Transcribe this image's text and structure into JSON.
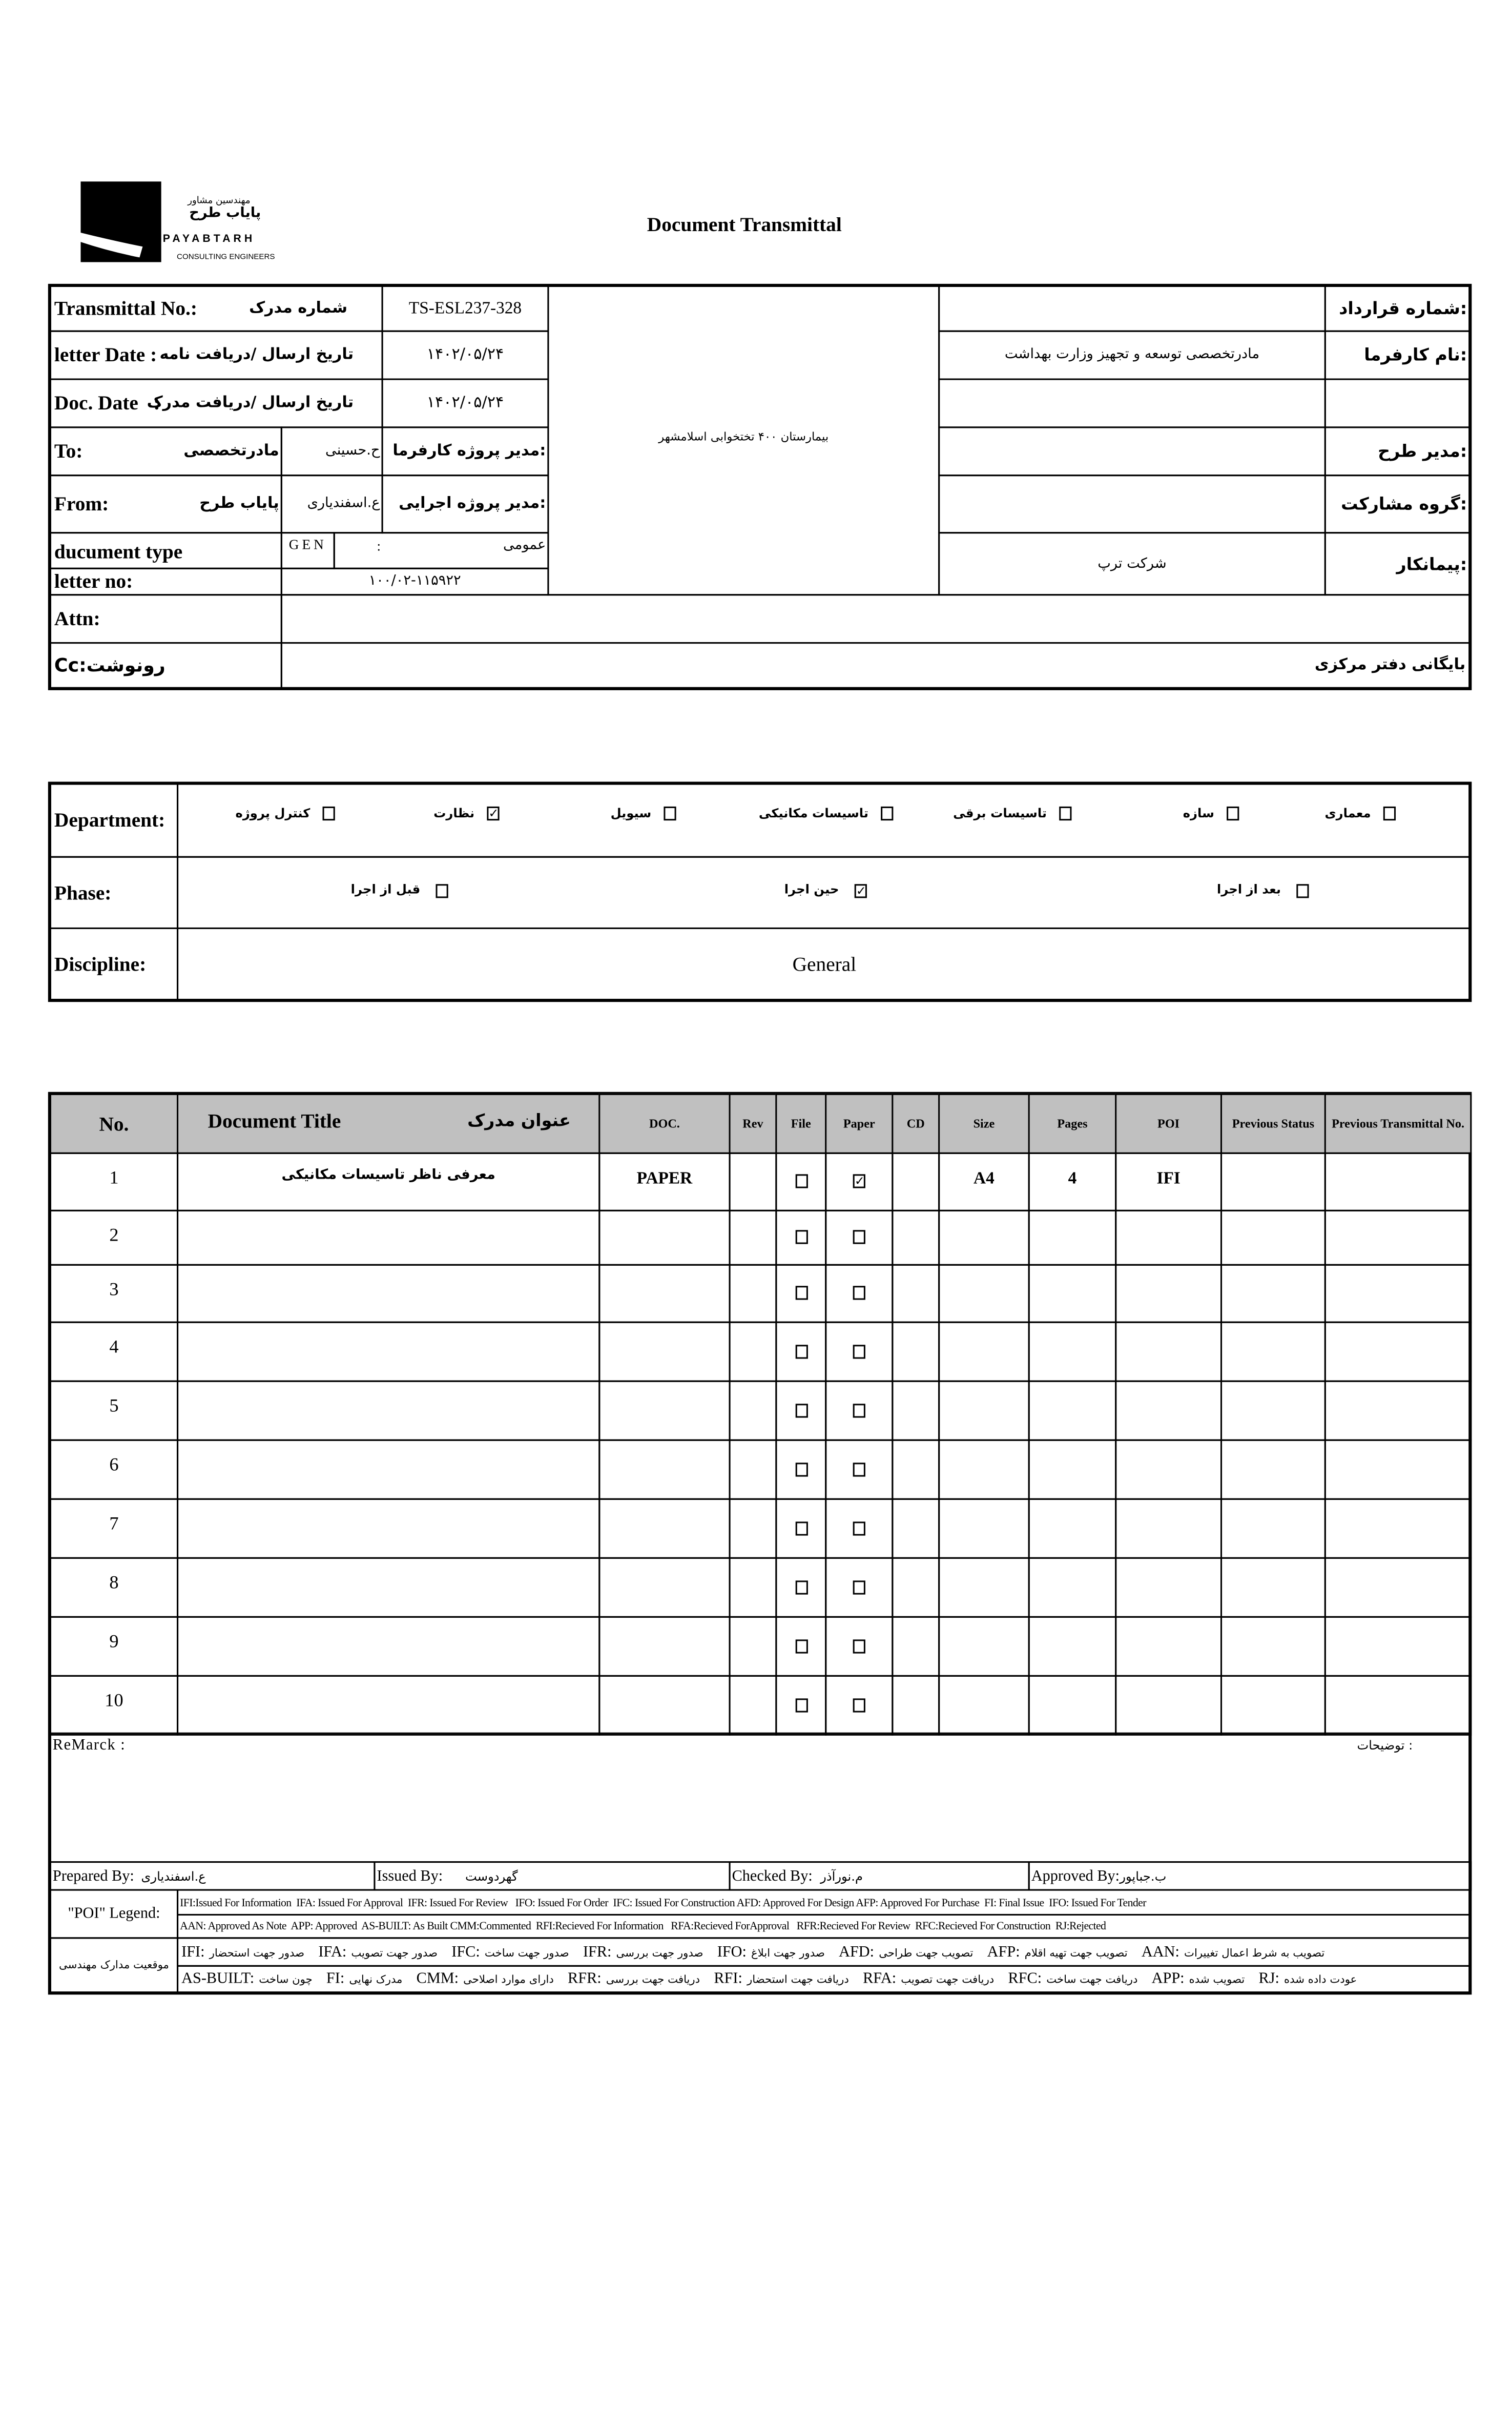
{
  "logo": {
    "fa_line1": "مهندسین مشاور",
    "fa_name": "پایاب طرح",
    "en_name": "PAYABTARH",
    "subtitle": "CONSULTING ENGINEERS"
  },
  "title": "Document Transmittal",
  "header": {
    "transmittal_no": {
      "label": "Transmittal No.:",
      "label_fa": "شماره مدرک",
      "value": "TS-ESL237-328"
    },
    "letter_date": {
      "label": "letter Date  :",
      "label_fa": "تاریخ ارسال /دریافت نامه",
      "value": "۱۴۰۲/۰۵/۲۴"
    },
    "doc_date": {
      "label": "Doc. Date   :",
      "label_fa": "تاریخ ارسال /دریافت مدرک",
      "value": "۱۴۰۲/۰۵/۲۴"
    },
    "to": {
      "label": "To:",
      "org": "مادرتخصصی",
      "person": "ح.حسینی",
      "role": "مدیر پروژه کارفرما:"
    },
    "from": {
      "label": "From:",
      "org": "پایاب طرح",
      "person": "ع.اسفندیاری",
      "role": "مدیر پروژه اجرایی:"
    },
    "document_type": {
      "label": "ducument type",
      "code": "GEN",
      "sep": ":",
      "value": "عمومی"
    },
    "letter_no": {
      "label": "letter no:",
      "value": "۱۰۰/۰۲-۱۱۵۹۲۲"
    },
    "attn": {
      "label": "Attn:",
      "value": ""
    },
    "cc": {
      "label": "Cc:رونوشت",
      "value": "بایگانی دفتر مرکزی"
    },
    "project": "بیمارستان ۴۰۰ تختخوابی اسلامشهر",
    "right": [
      {
        "label": "شماره قرارداد:",
        "value": ""
      },
      {
        "label": "نام کارفرما:",
        "value": "مادرتخصصی توسعه و تجهیز وزارت بهداشت"
      },
      {
        "label": "",
        "value": ""
      },
      {
        "label": "مدیر طرح:",
        "value": ""
      },
      {
        "label": "گروه مشارکت:",
        "value": ""
      },
      {
        "label": "پیمانکار:",
        "value": "شرکت ترپ"
      }
    ]
  },
  "department": {
    "label": "Department:",
    "options": [
      {
        "label": "معماری",
        "checked": false
      },
      {
        "label": "سازه",
        "checked": false
      },
      {
        "label": "تاسیسات برقی",
        "checked": false
      },
      {
        "label": "تاسیسات مکانیکی",
        "checked": false
      },
      {
        "label": "سیویل",
        "checked": false
      },
      {
        "label": "نظارت",
        "checked": true
      },
      {
        "label": "کنترل پروژه",
        "checked": false
      }
    ]
  },
  "phase": {
    "label": "Phase:",
    "options": [
      {
        "label": "بعد از اجرا",
        "checked": false
      },
      {
        "label": "حین اجرا",
        "checked": true
      },
      {
        "label": "قبل از اجرا",
        "checked": false
      }
    ]
  },
  "discipline": {
    "label": "Discipline:",
    "value": "General"
  },
  "table": {
    "headers": {
      "no": "No.",
      "title_en": "Document Title",
      "title_fa": "عنوان مدرک",
      "doc": "DOC.",
      "rev": "Rev",
      "file": "File",
      "paper": "Paper",
      "cd": "CD",
      "size": "Size",
      "pages": "Pages",
      "poi": "POI",
      "prev_status": "Previous Status",
      "prev_transmittal": "Previous Transmittal No."
    },
    "rows": [
      {
        "no": "1",
        "title": "معرفی ناظر تاسیسات مکانیکی",
        "doc": "PAPER",
        "rev": "",
        "file": false,
        "paper": true,
        "cd": "",
        "size": "A4",
        "pages": "4",
        "poi": "IFI",
        "prev_status": "",
        "prev_transmittal": ""
      },
      {
        "no": "2",
        "title": "",
        "doc": "",
        "rev": "",
        "file": false,
        "paper": false,
        "cd": "",
        "size": "",
        "pages": "",
        "poi": "",
        "prev_status": "",
        "prev_transmittal": ""
      },
      {
        "no": "3",
        "title": "",
        "doc": "",
        "rev": "",
        "file": false,
        "paper": false,
        "cd": "",
        "size": "",
        "pages": "",
        "poi": "",
        "prev_status": "",
        "prev_transmittal": ""
      },
      {
        "no": "4",
        "title": "",
        "doc": "",
        "rev": "",
        "file": false,
        "paper": false,
        "cd": "",
        "size": "",
        "pages": "",
        "poi": "",
        "prev_status": "",
        "prev_transmittal": ""
      },
      {
        "no": "5",
        "title": "",
        "doc": "",
        "rev": "",
        "file": false,
        "paper": false,
        "cd": "",
        "size": "",
        "pages": "",
        "poi": "",
        "prev_status": "",
        "prev_transmittal": ""
      },
      {
        "no": "6",
        "title": "",
        "doc": "",
        "rev": "",
        "file": false,
        "paper": false,
        "cd": "",
        "size": "",
        "pages": "",
        "poi": "",
        "prev_status": "",
        "prev_transmittal": ""
      },
      {
        "no": "7",
        "title": "",
        "doc": "",
        "rev": "",
        "file": false,
        "paper": false,
        "cd": "",
        "size": "",
        "pages": "",
        "poi": "",
        "prev_status": "",
        "prev_transmittal": ""
      },
      {
        "no": "8",
        "title": "",
        "doc": "",
        "rev": "",
        "file": false,
        "paper": false,
        "cd": "",
        "size": "",
        "pages": "",
        "poi": "",
        "prev_status": "",
        "prev_transmittal": ""
      },
      {
        "no": "9",
        "title": "",
        "doc": "",
        "rev": "",
        "file": false,
        "paper": false,
        "cd": "",
        "size": "",
        "pages": "",
        "poi": "",
        "prev_status": "",
        "prev_transmittal": ""
      },
      {
        "no": "10",
        "title": "",
        "doc": "",
        "rev": "",
        "file": false,
        "paper": false,
        "cd": "",
        "size": "",
        "pages": "",
        "poi": "",
        "prev_status": "",
        "prev_transmittal": ""
      }
    ]
  },
  "remark": {
    "label": "ReMarck :",
    "label_fa": "توضیحات :",
    "value": ""
  },
  "signatures": [
    {
      "label": "Prepared By:",
      "name": "ع.اسفندیاری"
    },
    {
      "label": "Issued By:",
      "name": "گهردوست"
    },
    {
      "label": "Checked By:",
      "name": "م.نورآذر"
    },
    {
      "label": "Approved By:",
      "name": "ب.جباپور"
    }
  ],
  "legend": {
    "poi_label": "\"POI\" Legend:",
    "line1": "IFI:Issued For Information  IFA: Issued For Approval  IFR: Issued For Review   IFO: Issued For Order  IFC: Issued For Construction AFD: Approved For Design AFP: Approved For Purchase  FI: Final Issue  IFO: Issued For Tender",
    "line2": "AAN: Approved As Note  APP: Approved  AS-BUILT: As Built CMM:Commented  RFI:Recieved For Information   RFA:Recieved ForApproval   RFR:Recieved For Review  RFC:Recieved For Construction  RJ:Rejected",
    "status_label": "موقعیت مدارک مهندسی",
    "fa_line1": [
      {
        "code": "IFI:",
        "text": "صدور جهت استحضار"
      },
      {
        "code": "IFA:",
        "text": "صدور جهت تصویب"
      },
      {
        "code": "IFC:",
        "text": "صدور جهت ساخت"
      },
      {
        "code": "IFR:",
        "text": "صدور جهت بررسی"
      },
      {
        "code": "IFO:",
        "text": "صدور جهت ابلاغ"
      },
      {
        "code": "AFD:",
        "text": "تصویب جهت طراحی"
      },
      {
        "code": "AFP:",
        "text": "تصویب جهت تهیه اقلام"
      },
      {
        "code": "AAN:",
        "text": "تصویب به شرط اعمال تغییرات"
      }
    ],
    "fa_line2": [
      {
        "code": "AS-BUILT:",
        "text": "چون ساخت"
      },
      {
        "code": "FI:",
        "text": "مدرک نهایی"
      },
      {
        "code": "CMM:",
        "text": "دارای موارد اصلاحی"
      },
      {
        "code": "RFR:",
        "text": "دریافت جهت بررسی"
      },
      {
        "code": "RFI:",
        "text": "دریافت جهت استحضار"
      },
      {
        "code": "RFA:",
        "text": "دریافت جهت تصویب"
      },
      {
        "code": "RFC:",
        "text": "دریافت جهت ساخت"
      },
      {
        "code": "APP:",
        "text": "تصویب شده"
      },
      {
        "code": "RJ:",
        "text": "عودت داده شده"
      }
    ]
  }
}
